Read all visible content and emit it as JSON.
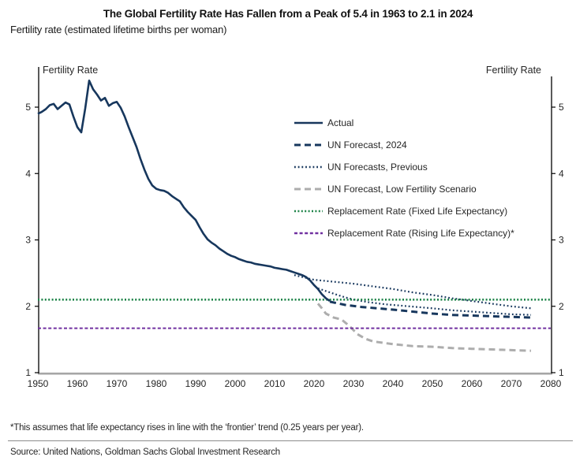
{
  "chart_data": {
    "type": "line",
    "title": "The Global Fertility Rate Has Fallen from a Peak of 5.4 in 1963 to 2.1 in 2024",
    "subtitle": "Fertility rate (estimated lifetime births per woman)",
    "ylabel_left": "Fertility Rate",
    "ylabel_right": "Fertility Rate",
    "xlim": [
      1950,
      2080
    ],
    "ylim": [
      1,
      5.6
    ],
    "x_ticks": [
      1950,
      1960,
      1970,
      1980,
      1990,
      2000,
      2010,
      2020,
      2030,
      2040,
      2050,
      2060,
      2070,
      2080
    ],
    "y_ticks": [
      1,
      2,
      3,
      4,
      5
    ],
    "grid": false,
    "legend_position": "inside-upper-right",
    "axis_color": "#000000",
    "baseline_color": "#A6A6A6",
    "series": [
      {
        "id": "actual",
        "label": "Actual",
        "color": "#17375D",
        "style": "solid",
        "width": 2.6,
        "z": 10,
        "points": [
          [
            1950,
            4.9
          ],
          [
            1951,
            4.93
          ],
          [
            1952,
            4.97
          ],
          [
            1953,
            5.03
          ],
          [
            1954,
            5.05
          ],
          [
            1955,
            4.97
          ],
          [
            1956,
            5.02
          ],
          [
            1957,
            5.07
          ],
          [
            1958,
            5.04
          ],
          [
            1959,
            4.86
          ],
          [
            1960,
            4.7
          ],
          [
            1961,
            4.62
          ],
          [
            1962,
            4.98
          ],
          [
            1963,
            5.4
          ],
          [
            1964,
            5.27
          ],
          [
            1965,
            5.19
          ],
          [
            1966,
            5.1
          ],
          [
            1967,
            5.14
          ],
          [
            1968,
            5.02
          ],
          [
            1969,
            5.06
          ],
          [
            1970,
            5.08
          ],
          [
            1971,
            4.99
          ],
          [
            1972,
            4.86
          ],
          [
            1973,
            4.7
          ],
          [
            1974,
            4.55
          ],
          [
            1975,
            4.4
          ],
          [
            1976,
            4.22
          ],
          [
            1977,
            4.06
          ],
          [
            1978,
            3.92
          ],
          [
            1979,
            3.82
          ],
          [
            1980,
            3.77
          ],
          [
            1981,
            3.75
          ],
          [
            1982,
            3.74
          ],
          [
            1983,
            3.71
          ],
          [
            1984,
            3.66
          ],
          [
            1985,
            3.62
          ],
          [
            1986,
            3.58
          ],
          [
            1987,
            3.49
          ],
          [
            1988,
            3.42
          ],
          [
            1989,
            3.36
          ],
          [
            1990,
            3.3
          ],
          [
            1991,
            3.19
          ],
          [
            1992,
            3.09
          ],
          [
            1993,
            3.01
          ],
          [
            1994,
            2.96
          ],
          [
            1995,
            2.92
          ],
          [
            1996,
            2.87
          ],
          [
            1997,
            2.83
          ],
          [
            1998,
            2.79
          ],
          [
            1999,
            2.76
          ],
          [
            2000,
            2.74
          ],
          [
            2001,
            2.71
          ],
          [
            2002,
            2.69
          ],
          [
            2003,
            2.67
          ],
          [
            2004,
            2.66
          ],
          [
            2005,
            2.64
          ],
          [
            2006,
            2.63
          ],
          [
            2007,
            2.62
          ],
          [
            2008,
            2.61
          ],
          [
            2009,
            2.6
          ],
          [
            2010,
            2.58
          ],
          [
            2011,
            2.57
          ],
          [
            2012,
            2.56
          ],
          [
            2013,
            2.55
          ],
          [
            2014,
            2.53
          ],
          [
            2015,
            2.51
          ],
          [
            2016,
            2.49
          ],
          [
            2017,
            2.47
          ],
          [
            2018,
            2.44
          ],
          [
            2019,
            2.39
          ],
          [
            2020,
            2.32
          ],
          [
            2021,
            2.26
          ],
          [
            2022,
            2.18
          ],
          [
            2023,
            2.12
          ],
          [
            2024,
            2.08
          ]
        ]
      },
      {
        "id": "un-forecast-2024",
        "label": "UN Forecast, 2024",
        "color": "#17375D",
        "style": "dash",
        "width": 3,
        "z": 5,
        "points": [
          [
            2024,
            2.07
          ],
          [
            2028,
            2.02
          ],
          [
            2032,
            1.99
          ],
          [
            2036,
            1.97
          ],
          [
            2040,
            1.95
          ],
          [
            2045,
            1.92
          ],
          [
            2050,
            1.89
          ],
          [
            2055,
            1.87
          ],
          [
            2060,
            1.86
          ],
          [
            2065,
            1.85
          ],
          [
            2070,
            1.84
          ],
          [
            2075,
            1.83
          ]
        ]
      },
      {
        "id": "un-forecasts-previous",
        "label": "UN Forecasts, Previous",
        "color": "#17375D",
        "style": "dot",
        "width": 2.2,
        "z": 4,
        "points": [
          [
            2015,
            2.47
          ],
          [
            2020,
            2.4
          ],
          [
            2025,
            2.37
          ],
          [
            2030,
            2.34
          ],
          [
            2035,
            2.3
          ],
          [
            2040,
            2.26
          ],
          [
            2045,
            2.21
          ],
          [
            2050,
            2.17
          ],
          [
            2055,
            2.12
          ],
          [
            2060,
            2.08
          ],
          [
            2065,
            2.04
          ],
          [
            2070,
            2.0
          ],
          [
            2075,
            1.97
          ]
        ]
      },
      {
        "id": "un-forecast-low",
        "label": "UN Forecast, Low Fertility Scenario",
        "color": "#ADADAD",
        "style": "dash",
        "width": 3,
        "z": 3,
        "points": [
          [
            2021,
            2.04
          ],
          [
            2022,
            1.97
          ],
          [
            2023,
            1.89
          ],
          [
            2025,
            1.83
          ],
          [
            2027,
            1.8
          ],
          [
            2029,
            1.7
          ],
          [
            2031,
            1.58
          ],
          [
            2033,
            1.51
          ],
          [
            2035,
            1.47
          ],
          [
            2040,
            1.43
          ],
          [
            2045,
            1.4
          ],
          [
            2050,
            1.39
          ],
          [
            2055,
            1.37
          ],
          [
            2060,
            1.36
          ],
          [
            2065,
            1.35
          ],
          [
            2070,
            1.34
          ],
          [
            2075,
            1.33
          ]
        ]
      },
      {
        "id": "replacement-fixed",
        "label": "Replacement Rate (Fixed Life Expectancy)",
        "color": "#1E8449",
        "style": "dot-dense",
        "width": 2.6,
        "z": 6,
        "points": [
          [
            1950,
            2.1
          ],
          [
            2080,
            2.1
          ]
        ]
      },
      {
        "id": "replacement-rising",
        "label": "Replacement Rate (Rising Life Expectancy)*",
        "color": "#7030A0",
        "style": "dash-short",
        "width": 2,
        "z": 6,
        "points": [
          [
            1950,
            1.67
          ],
          [
            2080,
            1.67
          ]
        ]
      }
    ],
    "extra_series": [
      {
        "id": "un-forecasts-previous-2",
        "label": "",
        "color": "#17375D",
        "style": "dot",
        "width": 2.2,
        "z": 4,
        "points": [
          [
            2021,
            2.27
          ],
          [
            2024,
            2.21
          ],
          [
            2027,
            2.15
          ],
          [
            2030,
            2.1
          ],
          [
            2034,
            2.06
          ],
          [
            2038,
            2.03
          ],
          [
            2042,
            2.01
          ],
          [
            2046,
            1.99
          ],
          [
            2050,
            1.97
          ],
          [
            2055,
            1.94
          ],
          [
            2060,
            1.92
          ],
          [
            2065,
            1.9
          ],
          [
            2070,
            1.88
          ],
          [
            2075,
            1.87
          ]
        ]
      }
    ]
  },
  "footnote": "*This assumes that life expectancy rises in line with the ‘frontier’ trend (0.25 years per year).",
  "source": "Source: United Nations, Goldman Sachs Global Investment Research"
}
